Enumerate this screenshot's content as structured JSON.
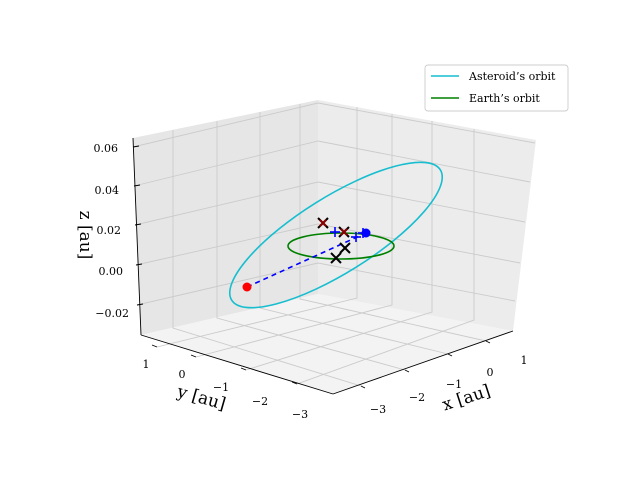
{
  "chart_data": {
    "type": "line",
    "projection": "3d",
    "xlabel": "x [au]",
    "ylabel": "y [au]",
    "zlabel": "z [au]",
    "xlim": [
      -3.5,
      1.5
    ],
    "ylim": [
      -3.5,
      1.5
    ],
    "zlim": [
      -0.03,
      0.065
    ],
    "x_ticks": [
      "−3",
      "−2",
      "−1",
      "0",
      "1"
    ],
    "y_ticks": [
      "−3",
      "−2",
      "−1",
      "0",
      "1"
    ],
    "z_ticks": [
      "−0.02",
      "0.00",
      "0.02",
      "0.04",
      "0.06"
    ],
    "grid": true,
    "legend_position": "upper-right",
    "series": [
      {
        "name": "Asteroid’s orbit",
        "color": "#17becf",
        "style": "solid",
        "shape": "ellipse",
        "eccentricity_hint": "elongated, inclined",
        "z_range": [
          -0.02,
          0.055
        ]
      },
      {
        "name": "Earth’s orbit",
        "color": "#008000",
        "style": "solid",
        "shape": "circle",
        "radius": 1.0,
        "z": 0.0
      }
    ],
    "annotations": [
      {
        "marker": "circle",
        "color": "#ff0000",
        "label": "asteroid position (red dot)"
      },
      {
        "marker": "circle",
        "color": "#0000ff",
        "label": "earth position (blue dot)"
      },
      {
        "marker": "dashed line",
        "color": "#0000ff",
        "label": "connection between red and blue points"
      },
      {
        "marker": "x",
        "color": "#000000",
        "count": 3
      },
      {
        "marker": "x",
        "color": "#8b0000",
        "count": 2
      },
      {
        "marker": "+",
        "color": "#0000ff",
        "count": 3
      }
    ]
  },
  "legend": {
    "items": [
      {
        "label": "Asteroid’s orbit",
        "color": "#17becf"
      },
      {
        "label": "Earth’s orbit",
        "color": "#008000"
      }
    ]
  },
  "colors": {
    "pane_back": "#eeeeee",
    "pane_side": "#e8e8e8",
    "pane_floor": "#f2f2f2",
    "grid": "#c8c8c8"
  }
}
